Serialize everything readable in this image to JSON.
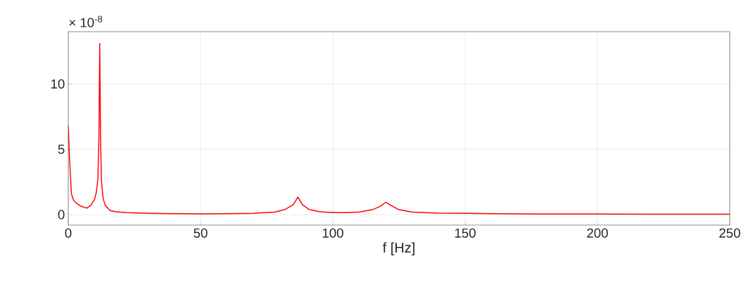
{
  "chart_data": {
    "type": "line",
    "xlabel": "f [Hz]",
    "annotations": [
      "× 10$^{-8}$"
    ],
    "xlim": [
      0,
      250
    ],
    "xticks": [
      0,
      50,
      100,
      150,
      200,
      250
    ],
    "ylim": [
      -0.8,
      14
    ],
    "yticks": [
      0,
      5,
      10
    ],
    "grid": true,
    "marker": "none",
    "line_style": "solid",
    "series": [
      {
        "color": "#ff0000",
        "x": [
          0,
          0.5,
          1.2,
          2,
          3,
          4.3,
          5.5,
          7,
          8.5,
          10,
          10.6,
          11.2,
          11.6,
          11.9,
          12.2,
          12.5,
          12.9,
          13.2,
          14,
          15.9,
          18,
          22,
          30,
          40,
          50,
          60,
          70,
          78,
          82,
          85,
          86.8,
          88.5,
          91,
          95,
          100,
          105,
          110,
          115,
          118,
          120,
          122,
          125,
          130,
          140,
          150,
          160,
          180,
          200,
          220,
          250
        ],
        "values": [
          6.8,
          4.2,
          1.6,
          1.1,
          0.9,
          0.7,
          0.6,
          0.5,
          0.7,
          1.2,
          1.7,
          2.7,
          6,
          13.1,
          6,
          2.7,
          1.8,
          1.2,
          0.7,
          0.3,
          0.22,
          0.15,
          0.1,
          0.08,
          0.06,
          0.07,
          0.1,
          0.2,
          0.4,
          0.75,
          1.35,
          0.75,
          0.4,
          0.22,
          0.16,
          0.15,
          0.2,
          0.38,
          0.65,
          0.95,
          0.7,
          0.38,
          0.2,
          0.12,
          0.1,
          0.07,
          0.05,
          0.05,
          0.04,
          0.03
        ]
      }
    ]
  }
}
